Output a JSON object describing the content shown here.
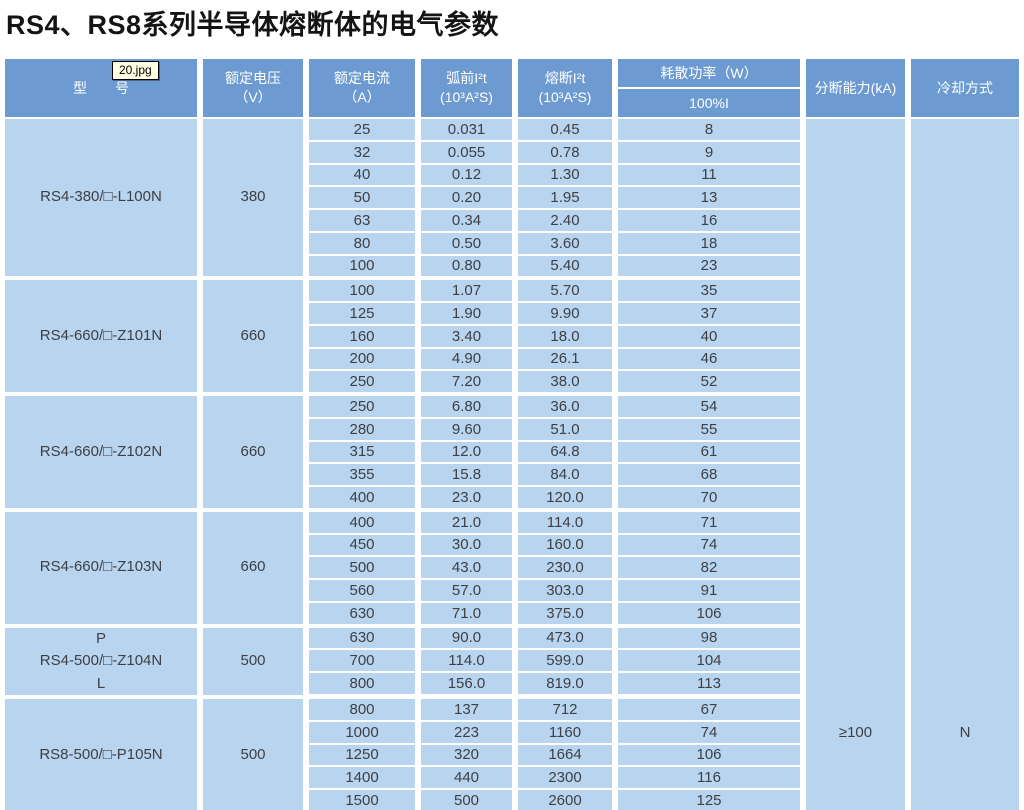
{
  "title": "RS4、RS8系列半导体熔断体的电气参数",
  "tooltip_text": "20.jpg",
  "table": {
    "headers": {
      "model": "型　　号",
      "voltage_l1": "额定电压",
      "voltage_l2": "（V）",
      "current_l1": "额定电流",
      "current_l2": "（A）",
      "prearc_l1": "弧前I²t",
      "prearc_l2": "(10³A²S)",
      "melt_l1": "熔断I²t",
      "melt_l2": "(10³A²S)",
      "power": "耗散功率（W）",
      "power_sub": "100%I",
      "breaking": "分断能力(kA)",
      "cooling": "冷却方式"
    },
    "breaking_value": "≥100",
    "cooling_value": "N",
    "blocks": [
      {
        "model": "RS4-380/□-L100N",
        "voltage": "380",
        "rows": [
          {
            "current": "25",
            "prearc": "0.031",
            "melt": "0.45",
            "power": "8"
          },
          {
            "current": "32",
            "prearc": "0.055",
            "melt": "0.78",
            "power": "9"
          },
          {
            "current": "40",
            "prearc": "0.12",
            "melt": "1.30",
            "power": "11"
          },
          {
            "current": "50",
            "prearc": "0.20",
            "melt": "1.95",
            "power": "13"
          },
          {
            "current": "63",
            "prearc": "0.34",
            "melt": "2.40",
            "power": "16"
          },
          {
            "current": "80",
            "prearc": "0.50",
            "melt": "3.60",
            "power": "18"
          },
          {
            "current": "100",
            "prearc": "0.80",
            "melt": "5.40",
            "power": "23"
          }
        ]
      },
      {
        "model": "RS4-660/□-Z101N",
        "voltage": "660",
        "rows": [
          {
            "current": "100",
            "prearc": "1.07",
            "melt": "5.70",
            "power": "35"
          },
          {
            "current": "125",
            "prearc": "1.90",
            "melt": "9.90",
            "power": "37"
          },
          {
            "current": "160",
            "prearc": "3.40",
            "melt": "18.0",
            "power": "40"
          },
          {
            "current": "200",
            "prearc": "4.90",
            "melt": "26.1",
            "power": "46"
          },
          {
            "current": "250",
            "prearc": "7.20",
            "melt": "38.0",
            "power": "52"
          }
        ]
      },
      {
        "model": "RS4-660/□-Z102N",
        "voltage": "660",
        "rows": [
          {
            "current": "250",
            "prearc": "6.80",
            "melt": "36.0",
            "power": "54"
          },
          {
            "current": "280",
            "prearc": "9.60",
            "melt": "51.0",
            "power": "55"
          },
          {
            "current": "315",
            "prearc": "12.0",
            "melt": "64.8",
            "power": "61"
          },
          {
            "current": "355",
            "prearc": "15.8",
            "melt": "84.0",
            "power": "68"
          },
          {
            "current": "400",
            "prearc": "23.0",
            "melt": "120.0",
            "power": "70"
          }
        ]
      },
      {
        "model": "RS4-660/□-Z103N",
        "voltage": "660",
        "rows": [
          {
            "current": "400",
            "prearc": "21.0",
            "melt": "114.0",
            "power": "71"
          },
          {
            "current": "450",
            "prearc": "30.0",
            "melt": "160.0",
            "power": "74"
          },
          {
            "current": "500",
            "prearc": "43.0",
            "melt": "230.0",
            "power": "82"
          },
          {
            "current": "560",
            "prearc": "57.0",
            "melt": "303.0",
            "power": "91"
          },
          {
            "current": "630",
            "prearc": "71.0",
            "melt": "375.0",
            "power": "106"
          }
        ]
      },
      {
        "model_line1": "P",
        "model": "RS4-500/□-Z104N",
        "model_line3": "L",
        "voltage": "500",
        "rows": [
          {
            "current": "630",
            "prearc": "90.0",
            "melt": "473.0",
            "power": "98"
          },
          {
            "current": "700",
            "prearc": "114.0",
            "melt": "599.0",
            "power": "104"
          },
          {
            "current": "800",
            "prearc": "156.0",
            "melt": "819.0",
            "power": "113"
          }
        ]
      },
      {
        "model": "RS8-500/□-P105N",
        "voltage": "500",
        "rows": [
          {
            "current": "800",
            "prearc": "137",
            "melt": "712",
            "power": "67"
          },
          {
            "current": "1000",
            "prearc": "223",
            "melt": "1160",
            "power": "74"
          },
          {
            "current": "1250",
            "prearc": "320",
            "melt": "1664",
            "power": "106"
          },
          {
            "current": "1400",
            "prearc": "440",
            "melt": "2300",
            "power": "116"
          },
          {
            "current": "1500",
            "prearc": "500",
            "melt": "2600",
            "power": "125"
          }
        ]
      }
    ]
  }
}
